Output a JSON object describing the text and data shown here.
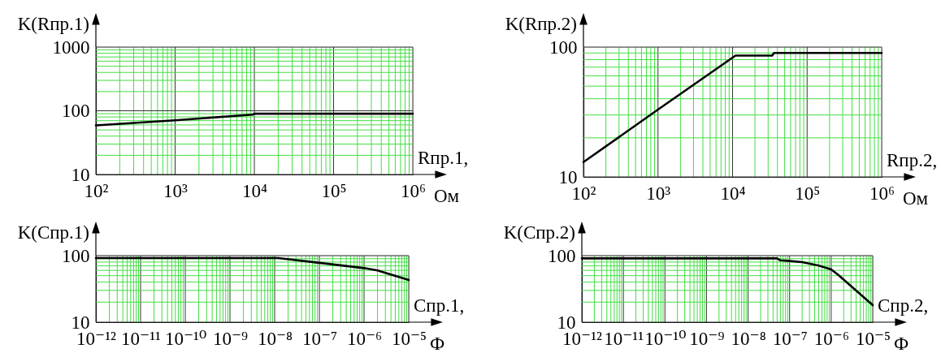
{
  "chart_data": [
    {
      "type": "line",
      "ylabel": "K(Rпр.1)",
      "xlabel": "Rпр.1,",
      "annotations": [
        "Ом"
      ],
      "log": "xy",
      "grid": true,
      "line_style": "solid",
      "xlim": [
        100,
        1000000
      ],
      "ylim": [
        10,
        1000
      ],
      "xticks": [
        {
          "value": 100,
          "label": "10²"
        },
        {
          "value": 200,
          "label": null
        },
        {
          "value": 300,
          "label": null
        },
        {
          "value": 400,
          "label": null
        },
        {
          "value": 500,
          "label": null
        },
        {
          "value": 600,
          "label": null
        },
        {
          "value": 700,
          "label": null
        },
        {
          "value": 800,
          "label": null
        },
        {
          "value": 900,
          "label": null
        },
        {
          "value": 1000,
          "label": "10³"
        },
        {
          "value": 2000,
          "label": null
        },
        {
          "value": 3000,
          "label": null
        },
        {
          "value": 4000,
          "label": null
        },
        {
          "value": 5000,
          "label": null
        },
        {
          "value": 6000,
          "label": null
        },
        {
          "value": 7000,
          "label": null
        },
        {
          "value": 8000,
          "label": null
        },
        {
          "value": 9000,
          "label": null
        },
        {
          "value": 10000,
          "label": "10⁴"
        },
        {
          "value": 20000,
          "label": null
        },
        {
          "value": 30000,
          "label": null
        },
        {
          "value": 40000,
          "label": null
        },
        {
          "value": 50000,
          "label": null
        },
        {
          "value": 60000,
          "label": null
        },
        {
          "value": 70000,
          "label": null
        },
        {
          "value": 80000,
          "label": null
        },
        {
          "value": 90000,
          "label": null
        },
        {
          "value": 100000,
          "label": "10⁵"
        },
        {
          "value": 200000,
          "label": null
        },
        {
          "value": 300000,
          "label": null
        },
        {
          "value": 400000,
          "label": null
        },
        {
          "value": 500000,
          "label": null
        },
        {
          "value": 600000,
          "label": null
        },
        {
          "value": 700000,
          "label": null
        },
        {
          "value": 800000,
          "label": null
        },
        {
          "value": 900000,
          "label": null
        },
        {
          "value": 1000000,
          "label": "10⁶"
        }
      ],
      "yticks": [
        10,
        {
          "value": 20,
          "label": null
        },
        {
          "value": 30,
          "label": null
        },
        {
          "value": 40,
          "label": null
        },
        {
          "value": 50,
          "label": null
        },
        {
          "value": 60,
          "label": null
        },
        {
          "value": 70,
          "label": null
        },
        {
          "value": 80,
          "label": null
        },
        {
          "value": 90,
          "label": null
        },
        100,
        {
          "value": 200,
          "label": null
        },
        {
          "value": 300,
          "label": null
        },
        {
          "value": 400,
          "label": null
        },
        {
          "value": 500,
          "label": null
        },
        {
          "value": 600,
          "label": null
        },
        {
          "value": 700,
          "label": null
        },
        {
          "value": 800,
          "label": null
        },
        {
          "value": 900,
          "label": null
        },
        1000
      ],
      "x": [
        100,
        1000,
        9500,
        10000,
        100000,
        1000000
      ],
      "series": [
        {
          "color": "#000000",
          "values": [
            59,
            71,
            87,
            90,
            90,
            90
          ]
        }
      ]
    },
    {
      "type": "line",
      "ylabel": "K(Rпр.2)",
      "xlabel": "Rпр.2,",
      "annotations": [
        "Ом"
      ],
      "log": "xy",
      "grid": true,
      "line_style": "solid",
      "xlim": [
        100,
        1000000
      ],
      "ylim": [
        10,
        100
      ],
      "xticks": [
        {
          "value": 100,
          "label": "10²"
        },
        {
          "value": 200,
          "label": null
        },
        {
          "value": 300,
          "label": null
        },
        {
          "value": 400,
          "label": null
        },
        {
          "value": 500,
          "label": null
        },
        {
          "value": 600,
          "label": null
        },
        {
          "value": 700,
          "label": null
        },
        {
          "value": 800,
          "label": null
        },
        {
          "value": 900,
          "label": null
        },
        {
          "value": 1000,
          "label": "10³"
        },
        {
          "value": 2000,
          "label": null
        },
        {
          "value": 3000,
          "label": null
        },
        {
          "value": 4000,
          "label": null
        },
        {
          "value": 5000,
          "label": null
        },
        {
          "value": 6000,
          "label": null
        },
        {
          "value": 7000,
          "label": null
        },
        {
          "value": 8000,
          "label": null
        },
        {
          "value": 9000,
          "label": null
        },
        {
          "value": 10000,
          "label": "10⁴"
        },
        {
          "value": 20000,
          "label": null
        },
        {
          "value": 30000,
          "label": null
        },
        {
          "value": 40000,
          "label": null
        },
        {
          "value": 50000,
          "label": null
        },
        {
          "value": 60000,
          "label": null
        },
        {
          "value": 70000,
          "label": null
        },
        {
          "value": 80000,
          "label": null
        },
        {
          "value": 90000,
          "label": null
        },
        {
          "value": 100000,
          "label": "10⁵"
        },
        {
          "value": 200000,
          "label": null
        },
        {
          "value": 300000,
          "label": null
        },
        {
          "value": 400000,
          "label": null
        },
        {
          "value": 500000,
          "label": null
        },
        {
          "value": 600000,
          "label": null
        },
        {
          "value": 700000,
          "label": null
        },
        {
          "value": 800000,
          "label": null
        },
        {
          "value": 900000,
          "label": null
        },
        {
          "value": 1000000,
          "label": "10⁶"
        }
      ],
      "yticks": [
        10,
        {
          "value": 20,
          "label": null
        },
        {
          "value": 30,
          "label": null
        },
        {
          "value": 40,
          "label": null
        },
        {
          "value": 50,
          "label": null
        },
        {
          "value": 60,
          "label": null
        },
        {
          "value": 70,
          "label": null
        },
        {
          "value": 80,
          "label": null
        },
        {
          "value": 90,
          "label": null
        },
        100
      ],
      "x": [
        100,
        1000,
        10000,
        11000,
        34000,
        36000,
        1000000
      ],
      "series": [
        {
          "color": "#000000",
          "values": [
            13,
            33,
            83,
            86,
            86,
            90,
            90
          ]
        }
      ]
    },
    {
      "type": "line",
      "ylabel": "K(Cпр.1)",
      "xlabel": "Cпр.1,",
      "annotations": [
        "Ф"
      ],
      "log": "xy",
      "grid": true,
      "line_style": "solid",
      "xlim": [
        1e-12,
        1e-05
      ],
      "ylim": [
        10,
        100
      ],
      "xticks": [
        {
          "value": 1e-12,
          "label": "10⁻¹²"
        },
        {
          "value": 2e-12,
          "label": null
        },
        {
          "value": 3e-12,
          "label": null
        },
        {
          "value": 4e-12,
          "label": null
        },
        {
          "value": 5e-12,
          "label": null
        },
        {
          "value": 6e-12,
          "label": null
        },
        {
          "value": 7e-12,
          "label": null
        },
        {
          "value": 8e-12,
          "label": null
        },
        {
          "value": 9e-12,
          "label": null
        },
        {
          "value": 1e-11,
          "label": "10⁻¹¹"
        },
        {
          "value": 2e-11,
          "label": null
        },
        {
          "value": 3e-11,
          "label": null
        },
        {
          "value": 4e-11,
          "label": null
        },
        {
          "value": 5e-11,
          "label": null
        },
        {
          "value": 6e-11,
          "label": null
        },
        {
          "value": 7e-11,
          "label": null
        },
        {
          "value": 8e-11,
          "label": null
        },
        {
          "value": 9e-11,
          "label": null
        },
        {
          "value": 1e-10,
          "label": "10⁻¹⁰"
        },
        {
          "value": 2e-10,
          "label": null
        },
        {
          "value": 3e-10,
          "label": null
        },
        {
          "value": 4e-10,
          "label": null
        },
        {
          "value": 5e-10,
          "label": null
        },
        {
          "value": 6e-10,
          "label": null
        },
        {
          "value": 7e-10,
          "label": null
        },
        {
          "value": 8e-10,
          "label": null
        },
        {
          "value": 9e-10,
          "label": null
        },
        {
          "value": 1e-09,
          "label": "10⁻⁹"
        },
        {
          "value": 2e-09,
          "label": null
        },
        {
          "value": 3e-09,
          "label": null
        },
        {
          "value": 4e-09,
          "label": null
        },
        {
          "value": 5e-09,
          "label": null
        },
        {
          "value": 6e-09,
          "label": null
        },
        {
          "value": 7e-09,
          "label": null
        },
        {
          "value": 8e-09,
          "label": null
        },
        {
          "value": 9e-09,
          "label": null
        },
        {
          "value": 1e-08,
          "label": "10⁻⁸"
        },
        {
          "value": 2e-08,
          "label": null
        },
        {
          "value": 3e-08,
          "label": null
        },
        {
          "value": 4e-08,
          "label": null
        },
        {
          "value": 5e-08,
          "label": null
        },
        {
          "value": 6e-08,
          "label": null
        },
        {
          "value": 7e-08,
          "label": null
        },
        {
          "value": 8e-08,
          "label": null
        },
        {
          "value": 9e-08,
          "label": null
        },
        {
          "value": 1e-07,
          "label": "10⁻⁷"
        },
        {
          "value": 2e-07,
          "label": null
        },
        {
          "value": 3e-07,
          "label": null
        },
        {
          "value": 4e-07,
          "label": null
        },
        {
          "value": 5e-07,
          "label": null
        },
        {
          "value": 6e-07,
          "label": null
        },
        {
          "value": 7e-07,
          "label": null
        },
        {
          "value": 8e-07,
          "label": null
        },
        {
          "value": 9e-07,
          "label": null
        },
        {
          "value": 1e-06,
          "label": "10⁻⁶"
        },
        {
          "value": 2e-06,
          "label": null
        },
        {
          "value": 3e-06,
          "label": null
        },
        {
          "value": 4e-06,
          "label": null
        },
        {
          "value": 5e-06,
          "label": null
        },
        {
          "value": 6e-06,
          "label": null
        },
        {
          "value": 7e-06,
          "label": null
        },
        {
          "value": 8e-06,
          "label": null
        },
        {
          "value": 9e-06,
          "label": null
        },
        {
          "value": 1e-05,
          "label": "10⁻⁵"
        }
      ],
      "yticks": [
        10,
        {
          "value": 20,
          "label": null
        },
        {
          "value": 30,
          "label": null
        },
        {
          "value": 40,
          "label": null
        },
        {
          "value": 50,
          "label": null
        },
        {
          "value": 60,
          "label": null
        },
        {
          "value": 70,
          "label": null
        },
        {
          "value": 80,
          "label": null
        },
        {
          "value": 90,
          "label": null
        },
        100
      ],
      "x": [
        1e-12,
        1.2e-08,
        1e-07,
        1e-06,
        2e-06,
        1e-05
      ],
      "series": [
        {
          "color": "#000000",
          "values": [
            92,
            92,
            78,
            65,
            60,
            43
          ]
        }
      ]
    },
    {
      "type": "line",
      "ylabel": "K(Cпр.2)",
      "xlabel": "Cпр.2,",
      "annotations": [
        "Ф"
      ],
      "log": "xy",
      "grid": true,
      "line_style": "solid",
      "xlim": [
        1e-12,
        1e-05
      ],
      "ylim": [
        10,
        100
      ],
      "xticks": [
        {
          "value": 1e-12,
          "label": "10⁻¹²"
        },
        {
          "value": 2e-12,
          "label": null
        },
        {
          "value": 3e-12,
          "label": null
        },
        {
          "value": 4e-12,
          "label": null
        },
        {
          "value": 5e-12,
          "label": null
        },
        {
          "value": 6e-12,
          "label": null
        },
        {
          "value": 7e-12,
          "label": null
        },
        {
          "value": 8e-12,
          "label": null
        },
        {
          "value": 9e-12,
          "label": null
        },
        {
          "value": 1e-11,
          "label": "10⁻¹¹"
        },
        {
          "value": 2e-11,
          "label": null
        },
        {
          "value": 3e-11,
          "label": null
        },
        {
          "value": 4e-11,
          "label": null
        },
        {
          "value": 5e-11,
          "label": null
        },
        {
          "value": 6e-11,
          "label": null
        },
        {
          "value": 7e-11,
          "label": null
        },
        {
          "value": 8e-11,
          "label": null
        },
        {
          "value": 9e-11,
          "label": null
        },
        {
          "value": 1e-10,
          "label": "10⁻¹⁰"
        },
        {
          "value": 2e-10,
          "label": null
        },
        {
          "value": 3e-10,
          "label": null
        },
        {
          "value": 4e-10,
          "label": null
        },
        {
          "value": 5e-10,
          "label": null
        },
        {
          "value": 6e-10,
          "label": null
        },
        {
          "value": 7e-10,
          "label": null
        },
        {
          "value": 8e-10,
          "label": null
        },
        {
          "value": 9e-10,
          "label": null
        },
        {
          "value": 1e-09,
          "label": "10⁻⁹"
        },
        {
          "value": 2e-09,
          "label": null
        },
        {
          "value": 3e-09,
          "label": null
        },
        {
          "value": 4e-09,
          "label": null
        },
        {
          "value": 5e-09,
          "label": null
        },
        {
          "value": 6e-09,
          "label": null
        },
        {
          "value": 7e-09,
          "label": null
        },
        {
          "value": 8e-09,
          "label": null
        },
        {
          "value": 9e-09,
          "label": null
        },
        {
          "value": 1e-08,
          "label": "10⁻⁸"
        },
        {
          "value": 2e-08,
          "label": null
        },
        {
          "value": 3e-08,
          "label": null
        },
        {
          "value": 4e-08,
          "label": null
        },
        {
          "value": 5e-08,
          "label": null
        },
        {
          "value": 6e-08,
          "label": null
        },
        {
          "value": 7e-08,
          "label": null
        },
        {
          "value": 8e-08,
          "label": null
        },
        {
          "value": 9e-08,
          "label": null
        },
        {
          "value": 1e-07,
          "label": "10⁻⁷"
        },
        {
          "value": 2e-07,
          "label": null
        },
        {
          "value": 3e-07,
          "label": null
        },
        {
          "value": 4e-07,
          "label": null
        },
        {
          "value": 5e-07,
          "label": null
        },
        {
          "value": 6e-07,
          "label": null
        },
        {
          "value": 7e-07,
          "label": null
        },
        {
          "value": 8e-07,
          "label": null
        },
        {
          "value": 9e-07,
          "label": null
        },
        {
          "value": 1e-06,
          "label": "10⁻⁶"
        },
        {
          "value": 2e-06,
          "label": null
        },
        {
          "value": 3e-06,
          "label": null
        },
        {
          "value": 4e-06,
          "label": null
        },
        {
          "value": 5e-06,
          "label": null
        },
        {
          "value": 6e-06,
          "label": null
        },
        {
          "value": 7e-06,
          "label": null
        },
        {
          "value": 8e-06,
          "label": null
        },
        {
          "value": 9e-06,
          "label": null
        },
        {
          "value": 1e-05,
          "label": "10⁻⁵"
        }
      ],
      "yticks": [
        10,
        {
          "value": 20,
          "label": null
        },
        {
          "value": 30,
          "label": null
        },
        {
          "value": 40,
          "label": null
        },
        {
          "value": 50,
          "label": null
        },
        {
          "value": 60,
          "label": null
        },
        {
          "value": 70,
          "label": null
        },
        {
          "value": 80,
          "label": null
        },
        {
          "value": 90,
          "label": null
        },
        100
      ],
      "x": [
        1e-12,
        5e-08,
        6e-08,
        1e-07,
        2e-07,
        5e-07,
        1e-06,
        1.5e-06,
        1e-05
      ],
      "series": [
        {
          "color": "#000000",
          "values": [
            91,
            91,
            85,
            83,
            80,
            71,
            62,
            51,
            18
          ]
        }
      ]
    }
  ]
}
